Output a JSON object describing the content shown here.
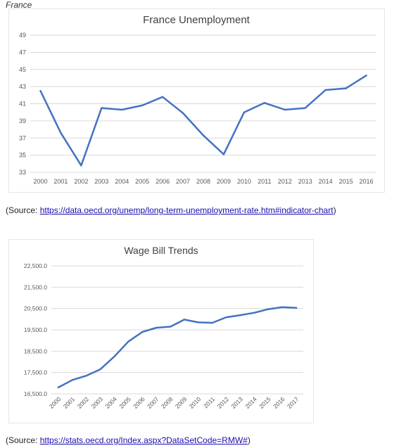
{
  "page": {
    "heading": "France",
    "source1_prefix": "(Source: ",
    "source1_link": "https://data.oecd.org/unemp/long-term-unemployment-rate.htm#indicator-chart",
    "source1_suffix": ")",
    "source2_prefix": "(Source: ",
    "source2_link": "https://stats.oecd.org/Index.aspx?DataSetCode=RMW#",
    "source2_suffix": ")"
  },
  "colors": {
    "line": "#4472c4",
    "grid": "#d9d9d9",
    "axis_text": "#595959",
    "title_text": "#404040"
  },
  "chart_data": [
    {
      "type": "line",
      "title": "France Unemployment",
      "xlabel": "",
      "ylabel": "",
      "categories": [
        "2000",
        "2001",
        "2002",
        "2003",
        "2004",
        "2005",
        "2006",
        "2007",
        "2008",
        "2009",
        "2010",
        "2011",
        "2012",
        "2013",
        "2014",
        "2015",
        "2016"
      ],
      "series": [
        {
          "values": [
            42.5,
            37.6,
            33.8,
            40.5,
            40.3,
            40.8,
            41.8,
            39.9,
            37.3,
            35.1,
            40.0,
            41.1,
            40.3,
            40.5,
            42.6,
            42.8,
            44.3
          ]
        }
      ],
      "ylim": [
        33,
        49
      ],
      "yticks": [
        "33",
        "35",
        "37",
        "39",
        "41",
        "43",
        "45",
        "47",
        "49"
      ],
      "grid": true,
      "legend": "none"
    },
    {
      "type": "line",
      "title": "Wage Bill Trends",
      "xlabel": "",
      "ylabel": "",
      "categories": [
        "2000",
        "2001",
        "2002",
        "2003",
        "2004",
        "2005",
        "2006",
        "2007",
        "2008",
        "2009",
        "2010",
        "2011",
        "2012",
        "2013",
        "2014",
        "2015",
        "2016",
        "2017"
      ],
      "series": [
        {
          "values": [
            16800,
            17150,
            17350,
            17650,
            18250,
            18950,
            19400,
            19600,
            19650,
            19980,
            19850,
            19830,
            20090,
            20190,
            20300,
            20470,
            20560,
            20530
          ]
        }
      ],
      "ylim": [
        16500,
        22500
      ],
      "yticks": [
        "16,500.0",
        "17,500.0",
        "18,500.0",
        "19,500.0",
        "20,500.0",
        "21,500.0",
        "22,500.0"
      ],
      "grid": true,
      "legend": "none"
    }
  ]
}
